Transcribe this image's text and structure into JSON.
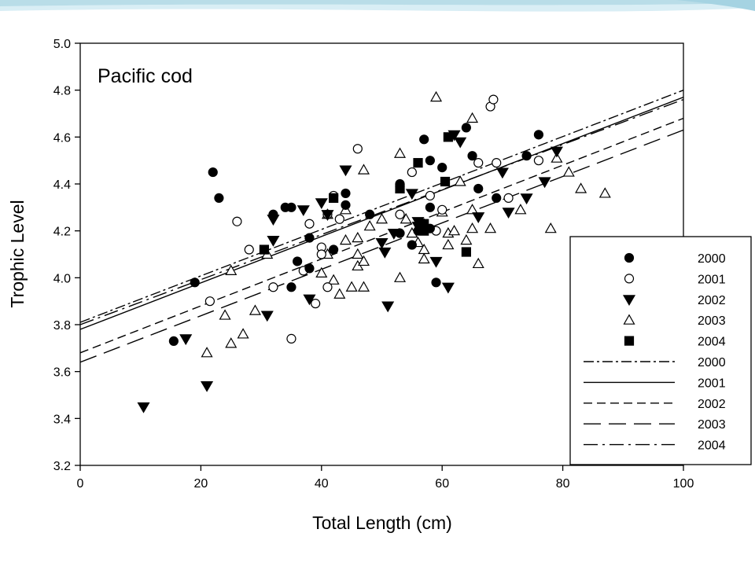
{
  "colors": {
    "banner": "#b9dde8",
    "axes": "#000000",
    "marks": "#000000"
  },
  "chart_data": {
    "type": "scatter",
    "title": "Pacific cod",
    "xlabel": "Total Length (cm)",
    "ylabel": "Trophic Level",
    "xlim": [
      0,
      100
    ],
    "ylim": [
      3.2,
      5.0
    ],
    "xticks": [
      "0",
      "20",
      "40",
      "60",
      "80",
      "100"
    ],
    "yticks": [
      "3.2",
      "3.4",
      "3.6",
      "3.8",
      "4.0",
      "4.2",
      "4.4",
      "4.6",
      "4.8",
      "5.0"
    ],
    "grid": false,
    "legend_position": "bottom-right",
    "series": [
      {
        "name": "2000",
        "marker": "filled-circle",
        "points": [
          [
            15.5,
            3.73
          ],
          [
            19,
            3.98
          ],
          [
            22,
            4.45
          ],
          [
            23,
            4.34
          ],
          [
            32,
            4.27
          ],
          [
            34,
            4.3
          ],
          [
            35,
            4.3
          ],
          [
            35,
            3.96
          ],
          [
            36,
            4.07
          ],
          [
            38,
            4.17
          ],
          [
            38,
            4.04
          ],
          [
            42,
            4.12
          ],
          [
            44,
            4.31
          ],
          [
            44,
            4.36
          ],
          [
            48,
            4.27
          ],
          [
            53,
            4.39
          ],
          [
            53,
            4.4
          ],
          [
            53,
            4.19
          ],
          [
            55,
            4.14
          ],
          [
            56,
            4.2
          ],
          [
            57,
            4.59
          ],
          [
            57,
            4.22
          ],
          [
            58,
            4.5
          ],
          [
            58,
            4.3
          ],
          [
            58,
            4.21
          ],
          [
            59,
            3.98
          ],
          [
            60,
            4.47
          ],
          [
            64,
            4.64
          ],
          [
            65,
            4.52
          ],
          [
            66,
            4.38
          ],
          [
            69,
            4.34
          ],
          [
            74,
            4.52
          ],
          [
            76,
            4.61
          ]
        ]
      },
      {
        "name": "2001",
        "marker": "open-circle",
        "points": [
          [
            21.5,
            3.9
          ],
          [
            26,
            4.24
          ],
          [
            28,
            4.12
          ],
          [
            32,
            3.96
          ],
          [
            35,
            3.74
          ],
          [
            37,
            4.03
          ],
          [
            38,
            4.23
          ],
          [
            39,
            3.89
          ],
          [
            40,
            4.13
          ],
          [
            40,
            4.1
          ],
          [
            41,
            4.27
          ],
          [
            41,
            3.96
          ],
          [
            42,
            4.35
          ],
          [
            43,
            4.25
          ],
          [
            46,
            4.55
          ],
          [
            53,
            4.27
          ],
          [
            55,
            4.45
          ],
          [
            58,
            4.35
          ],
          [
            59,
            4.2
          ],
          [
            60,
            4.29
          ],
          [
            66,
            4.49
          ],
          [
            68,
            4.73
          ],
          [
            68.5,
            4.76
          ],
          [
            69,
            4.49
          ],
          [
            71,
            4.34
          ],
          [
            76,
            4.5
          ]
        ]
      },
      {
        "name": "2002",
        "marker": "filled-triangle-down",
        "points": [
          [
            10.5,
            3.45
          ],
          [
            17.5,
            3.74
          ],
          [
            21,
            3.54
          ],
          [
            31,
            3.84
          ],
          [
            32,
            4.16
          ],
          [
            32,
            4.25
          ],
          [
            37,
            4.29
          ],
          [
            38,
            3.91
          ],
          [
            40,
            4.32
          ],
          [
            41,
            4.27
          ],
          [
            44,
            4.46
          ],
          [
            50,
            4.15
          ],
          [
            50.5,
            4.11
          ],
          [
            51,
            3.88
          ],
          [
            52,
            4.19
          ],
          [
            55,
            4.36
          ],
          [
            56,
            4.22
          ],
          [
            56,
            4.24
          ],
          [
            59,
            4.07
          ],
          [
            61,
            3.96
          ],
          [
            62,
            4.61
          ],
          [
            63,
            4.58
          ],
          [
            66,
            4.26
          ],
          [
            70,
            4.45
          ],
          [
            71,
            4.28
          ],
          [
            74,
            4.34
          ],
          [
            77,
            4.41
          ],
          [
            79,
            4.54
          ]
        ]
      },
      {
        "name": "2003",
        "marker": "open-triangle-up",
        "points": [
          [
            21,
            3.68
          ],
          [
            24,
            3.84
          ],
          [
            25,
            3.72
          ],
          [
            25,
            4.03
          ],
          [
            27,
            3.76
          ],
          [
            29,
            3.86
          ],
          [
            31,
            4.1
          ],
          [
            40,
            4.02
          ],
          [
            41,
            4.27
          ],
          [
            41,
            4.1
          ],
          [
            42,
            3.99
          ],
          [
            43,
            3.93
          ],
          [
            44,
            4.29
          ],
          [
            44,
            4.16
          ],
          [
            45,
            3.96
          ],
          [
            46,
            4.17
          ],
          [
            46,
            4.05
          ],
          [
            46,
            4.1
          ],
          [
            47,
            4.07
          ],
          [
            47,
            3.96
          ],
          [
            47,
            4.46
          ],
          [
            48,
            4.22
          ],
          [
            50,
            4.25
          ],
          [
            53,
            4.53
          ],
          [
            53,
            4.0
          ],
          [
            54,
            4.25
          ],
          [
            55,
            4.19
          ],
          [
            56,
            4.15
          ],
          [
            57,
            4.08
          ],
          [
            57,
            4.12
          ],
          [
            59,
            4.77
          ],
          [
            60,
            4.28
          ],
          [
            61,
            4.19
          ],
          [
            61,
            4.14
          ],
          [
            62,
            4.2
          ],
          [
            63,
            4.41
          ],
          [
            64,
            4.16
          ],
          [
            65,
            4.21
          ],
          [
            65,
            4.29
          ],
          [
            65,
            4.68
          ],
          [
            66,
            4.06
          ],
          [
            68,
            4.21
          ],
          [
            73,
            4.29
          ],
          [
            78,
            4.21
          ],
          [
            79,
            4.51
          ],
          [
            81,
            4.45
          ],
          [
            83,
            4.38
          ],
          [
            87,
            4.36
          ]
        ]
      },
      {
        "name": "2004",
        "marker": "filled-square",
        "points": [
          [
            30.5,
            4.12
          ],
          [
            42,
            4.34
          ],
          [
            53,
            4.38
          ],
          [
            56,
            4.49
          ],
          [
            57,
            4.23
          ],
          [
            57,
            4.2
          ],
          [
            60.5,
            4.41
          ],
          [
            61,
            4.6
          ],
          [
            64,
            4.11
          ]
        ]
      }
    ],
    "fit_lines": [
      {
        "name": "2000",
        "style": "dash-dot",
        "x": [
          0,
          100
        ],
        "y": [
          3.81,
          4.8
        ]
      },
      {
        "name": "2001",
        "style": "solid",
        "x": [
          0,
          100
        ],
        "y": [
          3.78,
          4.77
        ]
      },
      {
        "name": "2002",
        "style": "short-dash",
        "x": [
          0,
          100
        ],
        "y": [
          3.68,
          4.68
        ]
      },
      {
        "name": "2003",
        "style": "long-dash",
        "x": [
          0,
          100
        ],
        "y": [
          3.64,
          4.63
        ]
      },
      {
        "name": "2004",
        "style": "long-dash-dot",
        "x": [
          0,
          100
        ],
        "y": [
          3.8,
          4.76
        ]
      }
    ]
  }
}
